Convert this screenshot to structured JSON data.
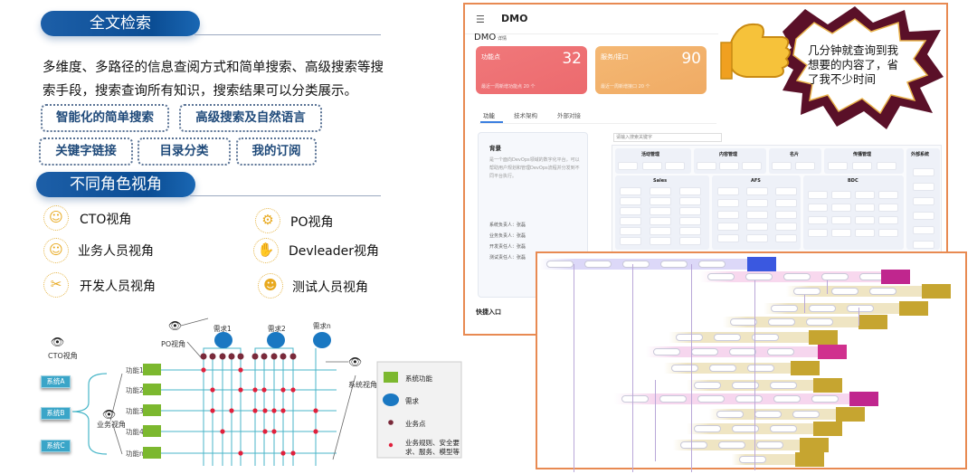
{
  "search_section": {
    "title": "全文检索",
    "description": "多维度、多路径的信息查阅方式和简单搜索、高级搜索等搜索手段，搜索查询所有知识，搜索结果可以分类展示。",
    "features": [
      "智能化的简单搜索",
      "高级搜索及自然语言",
      "关键字链接",
      "目录分类",
      "我的订阅"
    ]
  },
  "roles_section": {
    "title": "不同角色视角",
    "roles": [
      {
        "label": "CTO视角",
        "icon": "user-icon"
      },
      {
        "label": "PO视角",
        "icon": "product-owner-icon"
      },
      {
        "label": "业务人员视角",
        "icon": "user-icon"
      },
      {
        "label": "Devleader视角",
        "icon": "dev-leader-icon"
      },
      {
        "label": "开发人员视角",
        "icon": "tools-icon"
      },
      {
        "label": "测试人员视角",
        "icon": "tester-icon"
      }
    ]
  },
  "diagram": {
    "cto_view": "CTO视角",
    "po_view": "PO视角",
    "business_view": "业务视角",
    "system_view": "系统视角",
    "systems": [
      "系统A",
      "系统B",
      "系统C"
    ],
    "functions": [
      "功能1",
      "功能2",
      "功能3",
      "功能4",
      "功能n"
    ],
    "requirements": [
      "需求1",
      "需求2",
      "需求n"
    ],
    "legend": [
      {
        "label": "系统功能",
        "color": "#7cb82f"
      },
      {
        "label": "需求",
        "color": "#1a78c2"
      },
      {
        "label": "业务点",
        "color": "#7a2a3a"
      },
      {
        "label": "业务规则、安全要求、服务、模型等",
        "color": "#e0203c"
      }
    ]
  },
  "dmo_app": {
    "header_title": "DMO",
    "page_title": "DMO",
    "page_subtitle": "详情",
    "cards": [
      {
        "label": "功能点",
        "value": "32",
        "footer": "最近一周新增功能点  20 个",
        "color": "#ee6f72"
      },
      {
        "label": "服务/接口",
        "value": "90",
        "footer": "最近一周新增接口  20 个",
        "color": "#f2b06a"
      }
    ],
    "tabs": [
      "功能",
      "技术架构",
      "外部对接"
    ],
    "active_tab": "功能",
    "background_title": "背景",
    "background_text": "是一个面向DevOps领域的数字化平台，可以帮助用户规划和管理DevOps流程并分发到不同平台执行。",
    "owners": [
      "系统负责人：张磊",
      "业务负责人：张磊",
      "开发责任人：张磊",
      "测试责任人：张磊"
    ],
    "search_placeholder": "请输入搜索关键字",
    "quick_entry": "快捷入口",
    "map_groups": [
      "活动管理",
      "内容管理",
      "名片",
      "传播管理",
      "外部系统",
      "Sales",
      "AFS",
      "BDC"
    ]
  },
  "speech_bubble": {
    "text": "几分钟就查询到我想要的内容了，省了我不少时间"
  }
}
